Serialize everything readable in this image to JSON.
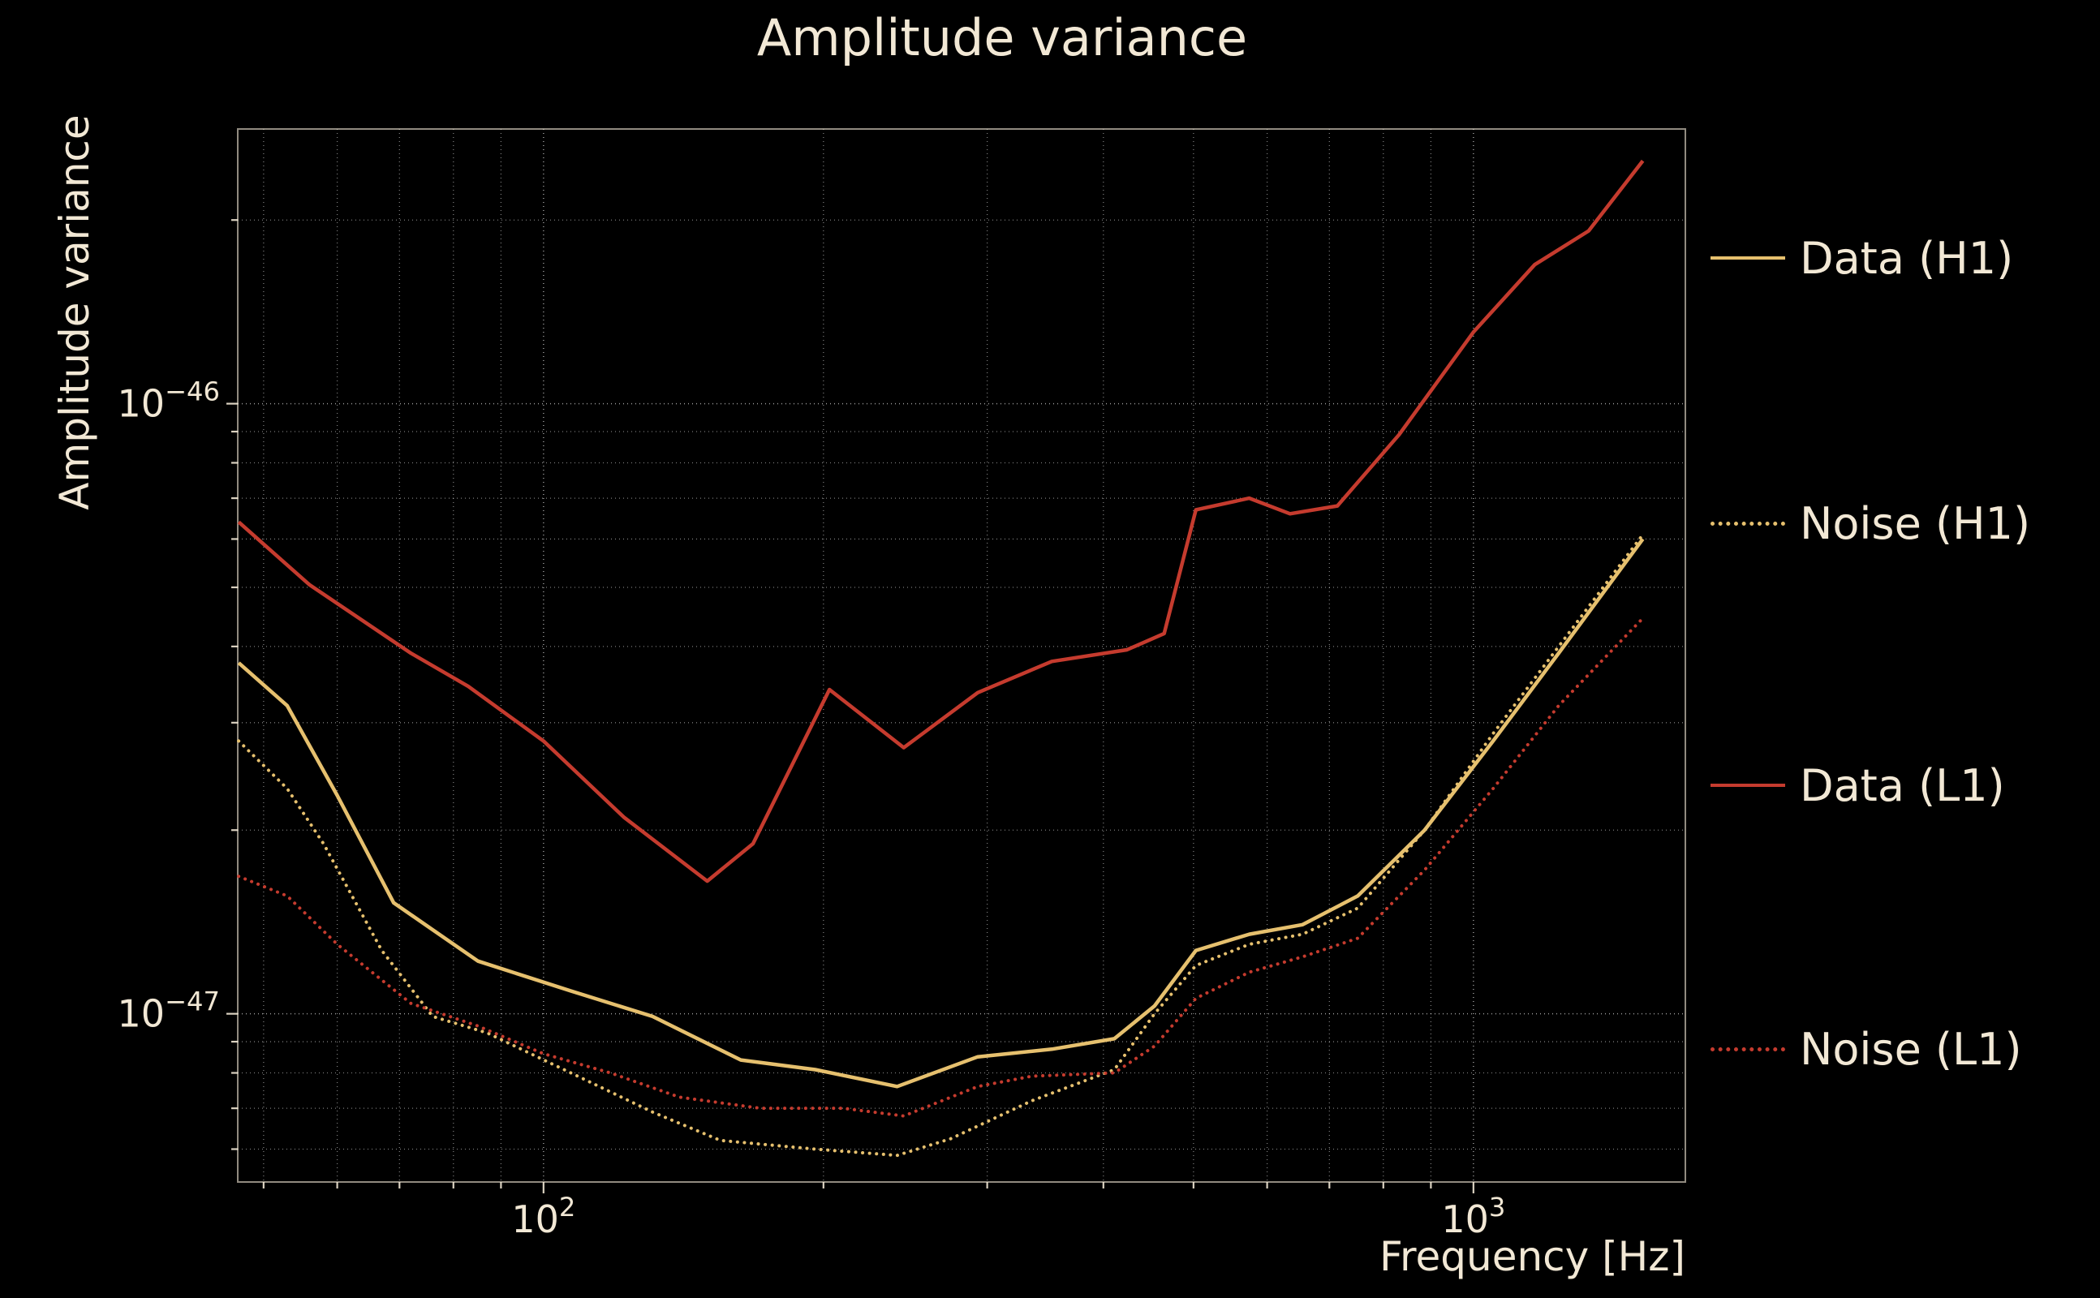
{
  "figure": {
    "background": "#000000",
    "text_color": "#f2e8d5",
    "grid_color": "#ffffff"
  },
  "chart_data": {
    "type": "line",
    "title": "Amplitude variance",
    "xlabel": "Frequency [Hz]",
    "ylabel": "Amplitude variance",
    "x_scale": "log",
    "y_scale": "log",
    "xlim": [
      46.9,
      1690
    ],
    "ylim": [
      5.3e-48,
      2.82e-46
    ],
    "grid": "both",
    "legend_position": "outside-right",
    "x_ticks": [
      {
        "value": 100,
        "base": "10",
        "exp": "2"
      },
      {
        "value": 1000,
        "base": "10",
        "exp": "3"
      }
    ],
    "y_ticks": [
      {
        "value": 1e-46,
        "base": "10",
        "exp": "−46"
      },
      {
        "value": 1e-47,
        "base": "10",
        "exp": "−47"
      }
    ],
    "series": [
      {
        "name": "Data (H1)",
        "color": "#e6c06e",
        "style": "solid",
        "x": [
          47,
          53,
          60,
          69,
          85,
          107,
          131,
          163,
          196,
          240,
          293,
          352,
          411,
          454,
          503,
          574,
          655,
          751,
          886,
          1050,
          1235,
          1521
        ],
        "y": [
          3.76e-47,
          3.2e-47,
          2.28e-47,
          1.52e-47,
          1.22e-47,
          1.09e-47,
          9.9e-48,
          8.4e-48,
          8.1e-48,
          7.6e-48,
          8.5e-48,
          8.75e-48,
          9.1e-48,
          1.03e-47,
          1.27e-47,
          1.35e-47,
          1.4e-47,
          1.56e-47,
          2e-47,
          2.8e-47,
          3.9e-47,
          6e-47
        ]
      },
      {
        "name": "Noise (H1)",
        "color": "#e6c06e",
        "style": "dotted",
        "x": [
          47,
          53,
          58,
          67,
          76,
          87,
          107,
          131,
          155,
          196,
          240,
          274,
          335,
          411,
          454,
          503,
          574,
          655,
          751,
          886,
          1050,
          1235,
          1521
        ],
        "y": [
          2.8e-47,
          2.34e-47,
          1.9e-47,
          1.27e-47,
          9.9e-48,
          9.3e-48,
          8e-48,
          6.9e-48,
          6.2e-48,
          6e-48,
          5.86e-48,
          6.24e-48,
          7.2e-48,
          8.1e-48,
          1e-47,
          1.2e-47,
          1.3e-47,
          1.35e-47,
          1.49e-47,
          2e-47,
          2.88e-47,
          4e-47,
          6.1e-47
        ]
      },
      {
        "name": "Data (L1)",
        "color": "#c53b2e",
        "style": "solid",
        "x": [
          47,
          56,
          72,
          83,
          100,
          122,
          150,
          168,
          203,
          244,
          293,
          352,
          424,
          465,
          503,
          574,
          635,
          714,
          832,
          1000,
          1164,
          1330,
          1521
        ],
        "y": [
          6.4e-47,
          5.05e-47,
          3.9e-47,
          3.44e-47,
          2.8e-47,
          2.1e-47,
          1.65e-47,
          1.9e-47,
          3.4e-47,
          2.73e-47,
          3.36e-47,
          3.78e-47,
          3.95e-47,
          4.2e-47,
          6.7e-47,
          7e-47,
          6.6e-47,
          6.8e-47,
          8.9e-47,
          1.31e-46,
          1.69e-46,
          1.92e-46,
          2.5e-46
        ]
      },
      {
        "name": "Noise (L1)",
        "color": "#c53b2e",
        "style": "dotted",
        "x": [
          47,
          53,
          60,
          72,
          85,
          100,
          118,
          140,
          171,
          210,
          244,
          293,
          335,
          411,
          454,
          503,
          574,
          655,
          751,
          886,
          1050,
          1235,
          1521
        ],
        "y": [
          1.68e-47,
          1.56e-47,
          1.3e-47,
          1.04e-47,
          9.55e-48,
          8.6e-48,
          8e-48,
          7.3e-48,
          7e-48,
          7e-48,
          6.8e-48,
          7.6e-48,
          7.9e-48,
          8e-48,
          8.85e-48,
          1.06e-47,
          1.17e-47,
          1.24e-47,
          1.33e-47,
          1.72e-47,
          2.34e-47,
          3.2e-47,
          4.45e-47
        ]
      }
    ]
  }
}
